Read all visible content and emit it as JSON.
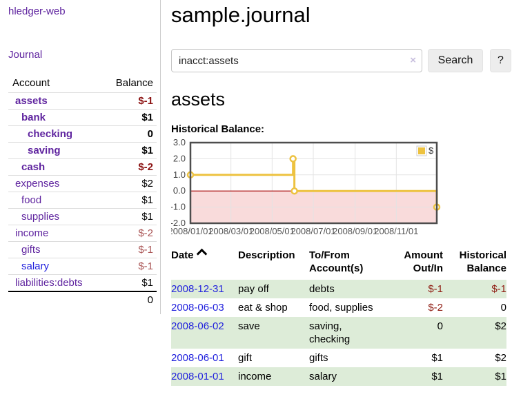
{
  "sidebar": {
    "app_title": "hledger-web",
    "journal_link": "Journal",
    "accounts_table": {
      "headers": [
        "Account",
        "Balance"
      ],
      "rows": [
        {
          "name": "assets",
          "indent": 0,
          "bold": true,
          "balance": "$-1",
          "neg": "strong"
        },
        {
          "name": "bank",
          "indent": 1,
          "bold": true,
          "balance": "$1"
        },
        {
          "name": "checking",
          "indent": 2,
          "bold": true,
          "balance": "0"
        },
        {
          "name": "saving",
          "indent": 2,
          "bold": true,
          "balance": "$1"
        },
        {
          "name": "cash",
          "indent": 1,
          "bold": true,
          "balance": "$-2",
          "neg": "strong"
        },
        {
          "name": "expenses",
          "indent": 0,
          "bold": false,
          "balance": "$2"
        },
        {
          "name": "food",
          "indent": 1,
          "bold": false,
          "balance": "$1"
        },
        {
          "name": "supplies",
          "indent": 1,
          "bold": false,
          "balance": "$1"
        },
        {
          "name": "income",
          "indent": 0,
          "bold": false,
          "balance": "$-2",
          "neg": "soft"
        },
        {
          "name": "gifts",
          "indent": 1,
          "bold": false,
          "balance": "$-1",
          "neg": "soft"
        },
        {
          "name": "salary",
          "indent": 1,
          "bold": false,
          "balance": "$-1",
          "neg": "soft",
          "link": "unvisited"
        },
        {
          "name": "liabilities:debts",
          "indent": 0,
          "bold": false,
          "balance": "$1"
        }
      ],
      "total": "0"
    }
  },
  "main": {
    "page_title": "sample.journal",
    "search": {
      "value": "inacct:assets",
      "clear_icon": "×",
      "button_label": "Search",
      "help_label": "?"
    },
    "account_heading": "assets",
    "register_table": {
      "headers": [
        "Date",
        "Description",
        "To/From Account(s)",
        "Amount Out/In",
        "Historical Balance"
      ],
      "sort": {
        "column": "Date",
        "direction": "ascending"
      },
      "rows": [
        {
          "date": "2008-12-31",
          "description": "pay off",
          "accounts": "debts",
          "amount": "$-1",
          "amount_negative": true,
          "balance": "$-1",
          "balance_negative": true
        },
        {
          "date": "2008-06-03",
          "description": "eat & shop",
          "accounts": "food, supplies",
          "amount": "$-2",
          "amount_negative": true,
          "balance": "0",
          "balance_negative": false
        },
        {
          "date": "2008-06-02",
          "description": "save",
          "accounts": "saving,\nchecking",
          "amount": "0",
          "amount_negative": false,
          "balance": "$2",
          "balance_negative": false
        },
        {
          "date": "2008-06-01",
          "description": "gift",
          "accounts": "gifts",
          "amount": "$1",
          "amount_negative": false,
          "balance": "$2",
          "balance_negative": false
        },
        {
          "date": "2008-01-01",
          "description": "income",
          "accounts": "salary",
          "amount": "$1",
          "amount_negative": false,
          "balance": "$1",
          "balance_negative": false
        }
      ]
    }
  },
  "chart_data": {
    "type": "line",
    "title": "Historical Balance:",
    "legend": [
      {
        "label": "$",
        "color": "#edc240"
      }
    ],
    "legend_position": "top-right",
    "grid": true,
    "ylim": [
      -2.0,
      3.0
    ],
    "y_ticks": [
      3.0,
      2.0,
      1.0,
      0.0,
      -1.0,
      -2.0
    ],
    "x_range_days": [
      0,
      365
    ],
    "x_ticks": [
      {
        "day": 0,
        "label": "2008/01/01"
      },
      {
        "day": 60,
        "label": "2008/03/01"
      },
      {
        "day": 121,
        "label": "2008/05/01"
      },
      {
        "day": 182,
        "label": "2008/07/01"
      },
      {
        "day": 244,
        "label": "2008/09/01"
      },
      {
        "day": 305,
        "label": "2008/11/01"
      }
    ],
    "series": [
      {
        "name": "$",
        "color": "#edc240",
        "step": true,
        "points": [
          {
            "date": "2008-01-01",
            "day": 0,
            "value": 1
          },
          {
            "date": "2008-06-01",
            "day": 152,
            "value": 2
          },
          {
            "date": "2008-06-03",
            "day": 154,
            "value": 0
          },
          {
            "date": "2008-12-31",
            "day": 365,
            "value": -1
          }
        ]
      }
    ],
    "negative_region_color": "#f9dbdb",
    "zero_line_color": "#a40000",
    "gridline_color": "#e3e3e3",
    "border_color": "#4d4d4d"
  },
  "colors": {
    "link_purple": "#5f249f",
    "link_blue": "#2222dd",
    "negative_strong": "#8b1212",
    "negative_soft": "#aa5555",
    "table_negative": "#8e1a10",
    "row_stripe_green": "#ddecd8",
    "chart_line": "#edc240"
  }
}
